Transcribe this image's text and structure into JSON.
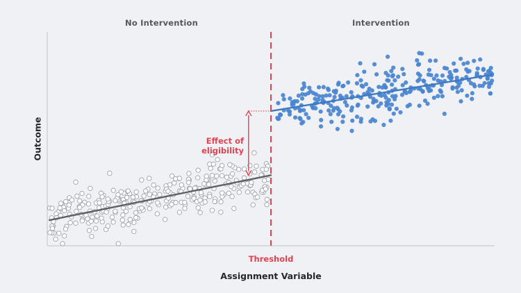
{
  "headers": {
    "left": "No Intervention",
    "right": "Intervention"
  },
  "annotations": {
    "threshold_label": "Threshold",
    "effect_line1": "Effect of",
    "effect_line2": "eligibility"
  },
  "colors": {
    "background": "#f0f1f5",
    "axis": "#c9ccd3",
    "control_points_fill": "#ffffff",
    "control_points_stroke": "#9ea1a8",
    "control_line": "#5e6068",
    "treatment_points": "#4a85cf",
    "treatment_line": "#3f79c2",
    "threshold": "#e0434f"
  },
  "chart_data": {
    "type": "scatter",
    "title": "",
    "xlabel": "Assignment Variable",
    "ylabel": "Outcome",
    "x_ticks_shown": false,
    "y_ticks_shown": false,
    "grid": false,
    "legend": "none",
    "xlim": [
      0,
      100
    ],
    "ylim": [
      0,
      100
    ],
    "threshold_x": 50,
    "series": [
      {
        "group": "left",
        "marker": "hollow-circle",
        "n_points": 300,
        "x_range": [
          0.5,
          49.5
        ],
        "noise_sd": 6,
        "fit_line": {
          "x": [
            0.5,
            50
          ],
          "y": [
            12,
            33
          ]
        }
      },
      {
        "group": "right",
        "marker": "filled-circle",
        "n_points": 300,
        "x_range": [
          50.5,
          99.5
        ],
        "noise_sd": 6,
        "fit_line": {
          "x": [
            50,
            99.5
          ],
          "y": [
            63,
            80
          ]
        }
      }
    ],
    "annotation": {
      "x": 45,
      "y_from": 33,
      "y_to": 63
    }
  }
}
